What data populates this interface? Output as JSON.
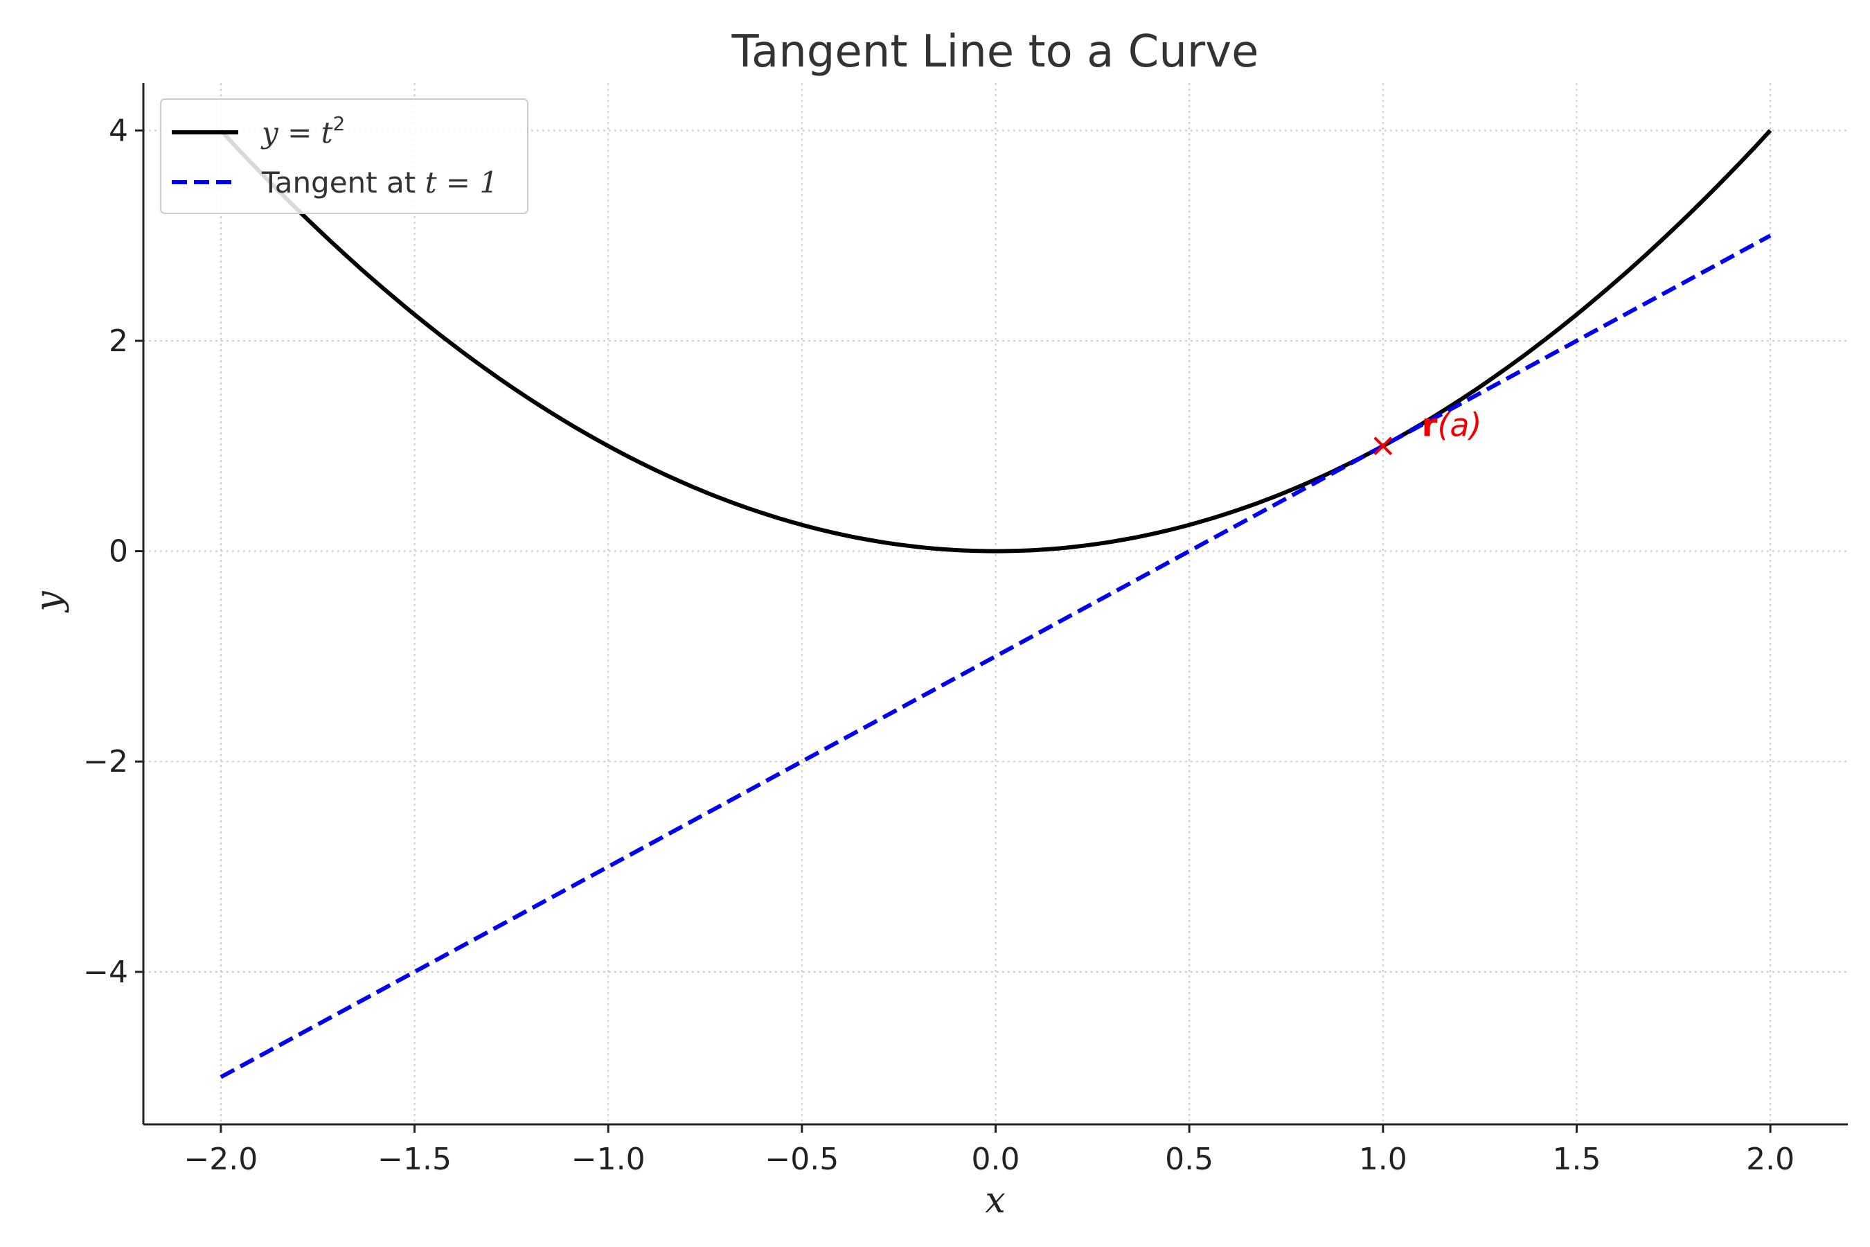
{
  "chart_data": {
    "type": "line",
    "title": "Tangent Line to a Curve",
    "xlabel": "x",
    "ylabel": "y",
    "xlim": [
      -2.2,
      2.2
    ],
    "ylim": [
      -5.45,
      4.45
    ],
    "xticks": [
      -2.0,
      -1.5,
      -1.0,
      -0.5,
      0.0,
      0.5,
      1.0,
      1.5,
      2.0
    ],
    "xtick_labels": [
      "−2.0",
      "−1.5",
      "−1.0",
      "−0.5",
      "0.0",
      "0.5",
      "1.0",
      "1.5",
      "2.0"
    ],
    "yticks": [
      4,
      2,
      0,
      -2,
      -4
    ],
    "ytick_labels": [
      "4",
      "2",
      "0",
      "−2",
      "−4"
    ],
    "grid": true,
    "legend_position": "top-left",
    "series": [
      {
        "name": "y = t²",
        "legend_main": "y = t",
        "legend_sup": "2",
        "style": "solid",
        "color": "#000000",
        "x": [
          -2.0,
          -1.75,
          -1.5,
          -1.25,
          -1.0,
          -0.75,
          -0.5,
          -0.25,
          0.0,
          0.25,
          0.5,
          0.75,
          1.0,
          1.25,
          1.5,
          1.75,
          2.0
        ],
        "y": [
          4.0,
          3.0625,
          2.25,
          1.5625,
          1.0,
          0.5625,
          0.25,
          0.0625,
          0.0,
          0.0625,
          0.25,
          0.5625,
          1.0,
          1.5625,
          2.25,
          3.0625,
          4.0
        ]
      },
      {
        "name": "Tangent at t = 1",
        "legend_main": "Tangent at ",
        "legend_math": "t = 1",
        "style": "dashed",
        "color": "#0000ee",
        "x": [
          -2.0,
          2.0
        ],
        "y": [
          -5.0,
          3.0
        ]
      }
    ],
    "annotations": [
      {
        "marker": "x",
        "x": 1.0,
        "y": 1.0,
        "color": "#ee0000",
        "label_bold": "r",
        "label_rest": "(a)",
        "label_offset_data": [
          0.1,
          0.2
        ]
      }
    ]
  }
}
